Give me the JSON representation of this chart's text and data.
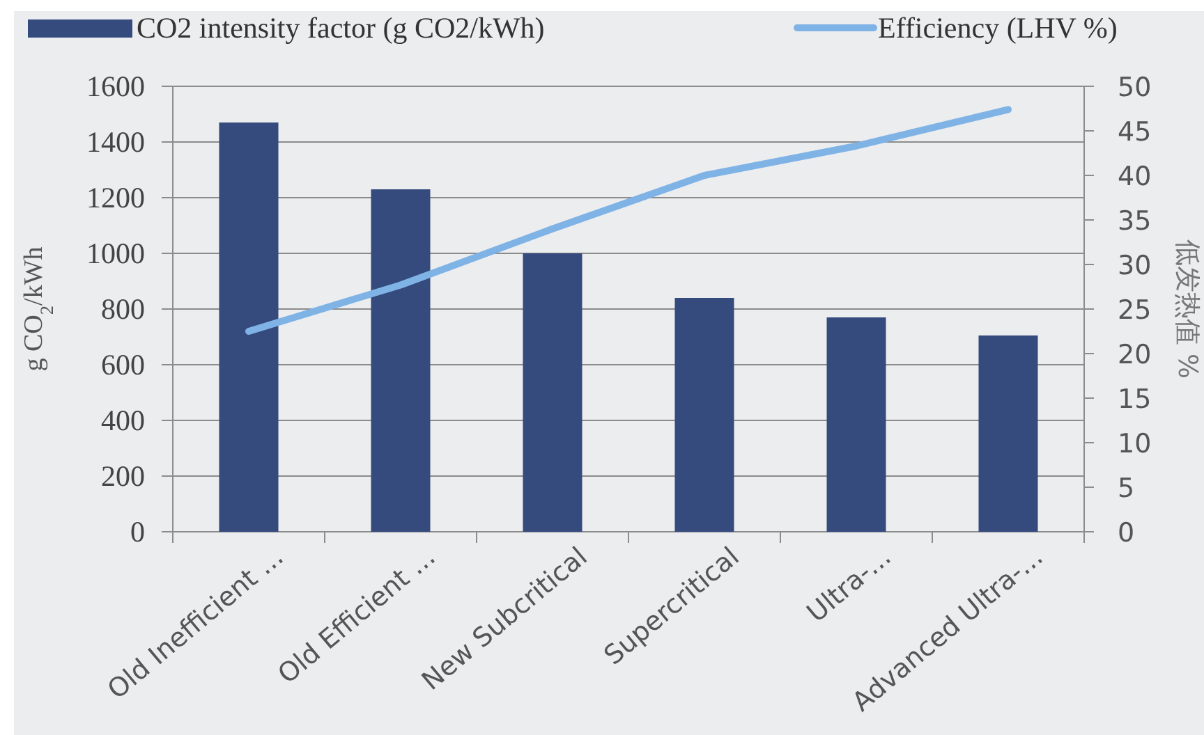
{
  "chart_data": {
    "type": "bar",
    "categories": [
      "Old Inefficient ...",
      "Old Efficient ...",
      "New Subcritical",
      "Supercritical",
      "Ultra-...",
      "Advanced Ultra-..."
    ],
    "series": [
      {
        "name": "CO2 intensity factor (g CO2/kWh)",
        "color": "#354b7e",
        "values": [
          1470,
          1230,
          1000,
          840,
          770,
          705
        ]
      },
      {
        "name": "Efficiency (LHV %)",
        "type": "line",
        "axis": "y2",
        "color": "#7fb3e6",
        "values": [
          22.5,
          27.7,
          34,
          40,
          43.3,
          47.4
        ]
      }
    ],
    "ylabel": "g CO$_{2}$/kWh",
    "y2label": "低发热值 %",
    "ylim": [
      0,
      1600
    ],
    "yticks": [
      0,
      200,
      400,
      600,
      800,
      1000,
      1200,
      1400,
      1600
    ],
    "y2lim": [
      0,
      50
    ],
    "y2ticks": [
      0,
      5,
      10,
      15,
      20,
      25,
      30,
      35,
      40,
      45,
      50
    ],
    "grid": "y",
    "legend": "top"
  }
}
